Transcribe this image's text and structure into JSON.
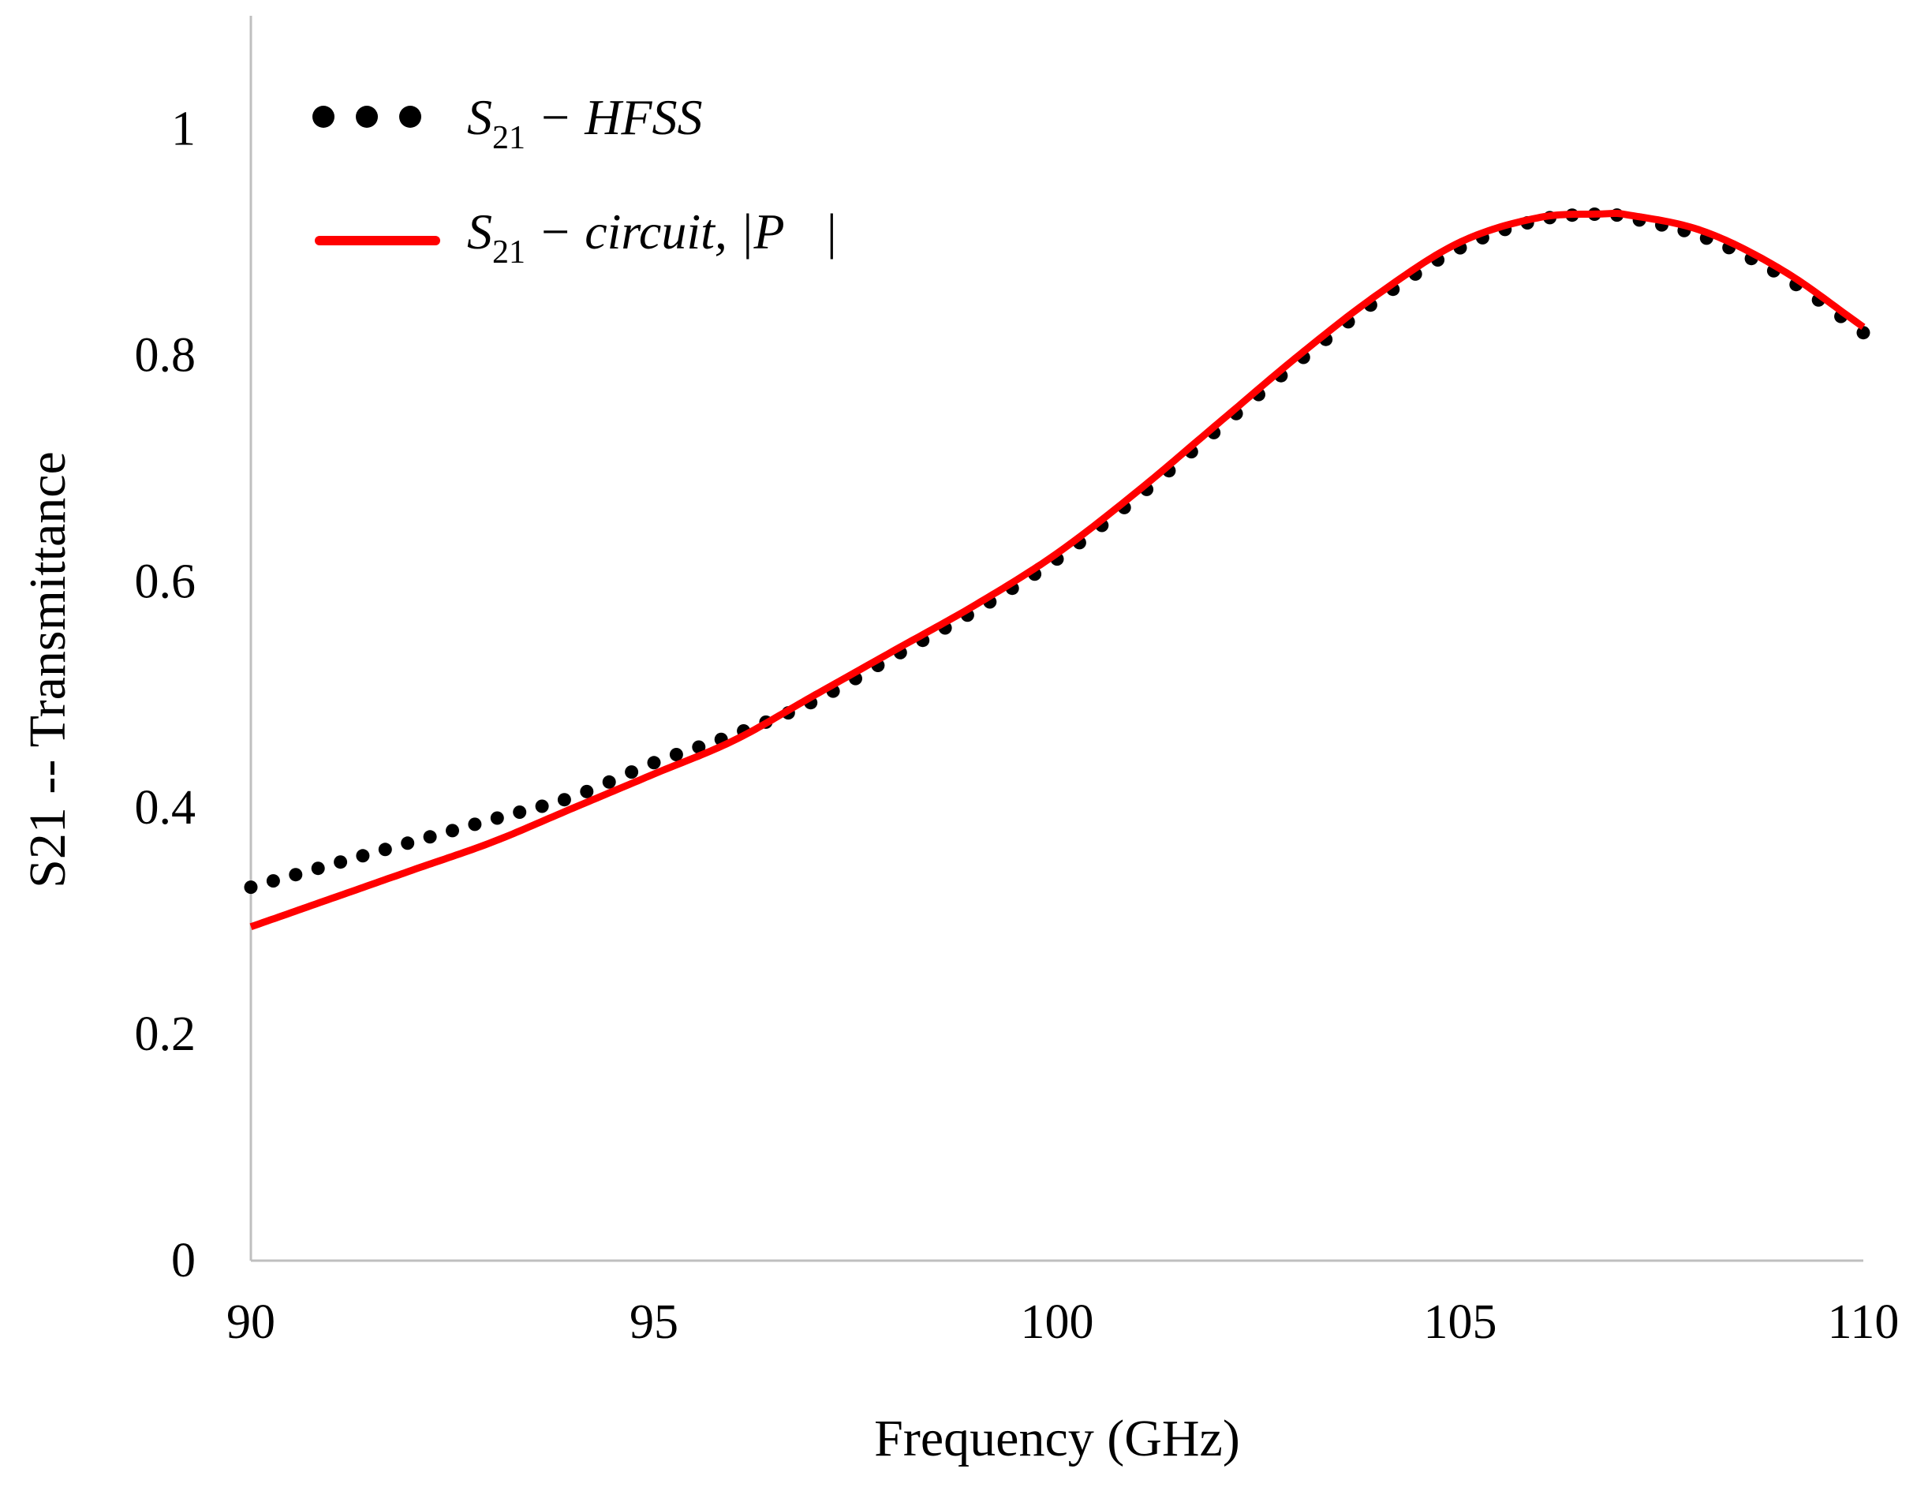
{
  "chart_data": {
    "type": "line",
    "title": "",
    "xlabel": "Frequency (GHz)",
    "ylabel": "S21 -- Transmittance",
    "xlim": [
      90,
      110
    ],
    "ylim": [
      0,
      1.1
    ],
    "xticks": [
      "90",
      "95",
      "100",
      "105",
      "110"
    ],
    "yticks": [
      "0",
      "0.2",
      "0.4",
      "0.6",
      "0.8",
      "1"
    ],
    "grid": false,
    "legend_position": "top-left",
    "series": [
      {
        "name": "S21 - HFSS",
        "legend": {
          "base": "S",
          "sub": "21",
          "rest": " − HFSS"
        },
        "style": "dotted",
        "color": "#000000",
        "x": [
          90,
          91,
          92,
          93,
          94,
          95,
          96,
          97,
          98,
          99,
          100,
          101,
          102,
          103,
          104,
          105,
          106,
          106.8,
          107,
          108,
          109,
          110
        ],
        "y": [
          0.33,
          0.35,
          0.37,
          0.39,
          0.41,
          0.44,
          0.465,
          0.495,
          0.535,
          0.575,
          0.62,
          0.675,
          0.735,
          0.795,
          0.85,
          0.895,
          0.92,
          0.925,
          0.923,
          0.905,
          0.87,
          0.82
        ]
      },
      {
        "name": "S21 - circuit, |P|",
        "legend": {
          "base": "S",
          "sub": "21",
          "rest": " − circuit, |P⃗|"
        },
        "style": "solid",
        "color": "#ff0000",
        "x": [
          90,
          91,
          92,
          93,
          94,
          95,
          96,
          97,
          98,
          99,
          100,
          101,
          102,
          103,
          104,
          105,
          106,
          106.8,
          107,
          108,
          109,
          110
        ],
        "y": [
          0.295,
          0.32,
          0.345,
          0.37,
          0.4,
          0.43,
          0.46,
          0.5,
          0.54,
          0.58,
          0.625,
          0.68,
          0.74,
          0.8,
          0.855,
          0.9,
          0.922,
          0.925,
          0.925,
          0.91,
          0.875,
          0.825
        ]
      }
    ]
  }
}
